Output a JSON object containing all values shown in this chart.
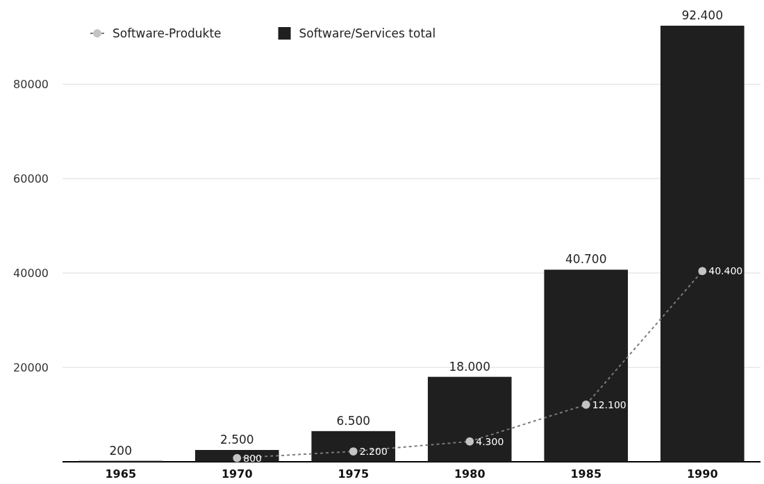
{
  "chart_data": {
    "type": "bar",
    "categories": [
      "1965",
      "1970",
      "1975",
      "1980",
      "1985",
      "1990"
    ],
    "ylim": [
      0,
      92400
    ],
    "yticks": [
      20000,
      40000,
      60000,
      80000
    ],
    "grid": "y",
    "legend": "top left",
    "marker": "circle",
    "line_style": "dashed",
    "series": [
      {
        "name": "Software-Produkte",
        "type": "line",
        "color": "#c4c4c4",
        "values": [
          null,
          800,
          2200,
          4300,
          12100,
          40400
        ],
        "value_labels": [
          null,
          "800",
          "2.200",
          "4.300",
          "12.100",
          "40.400"
        ]
      },
      {
        "name": "Software/Services total",
        "color": "#1f1f1f",
        "values": [
          200,
          2500,
          6500,
          18000,
          40700,
          92400
        ],
        "value_labels": [
          "200",
          "2.500",
          "6.500",
          "18.000",
          "40.700",
          "92.400"
        ]
      }
    ]
  }
}
